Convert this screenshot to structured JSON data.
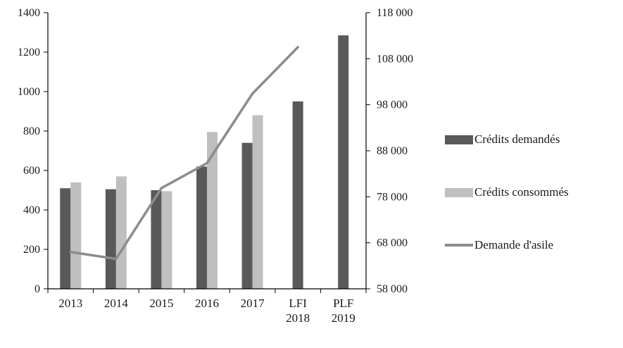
{
  "chart_data": {
    "type": "combo-bar-line",
    "title": "",
    "categories": [
      "2013",
      "2014",
      "2015",
      "2016",
      "2017",
      "LFI 2018",
      "PLF 2019"
    ],
    "category_labels": [
      [
        "2013"
      ],
      [
        "2014"
      ],
      [
        "2015"
      ],
      [
        "2016"
      ],
      [
        "2017"
      ],
      [
        "LFI",
        "2018"
      ],
      [
        "PLF",
        "2019"
      ]
    ],
    "series": [
      {
        "name": "Crédits demandés",
        "type": "bar",
        "axis": "left",
        "color": "#595959",
        "values": [
          510,
          505,
          500,
          620,
          740,
          950,
          1285
        ]
      },
      {
        "name": "Crédits consommés",
        "type": "bar",
        "axis": "left",
        "color": "#bfbfbf",
        "values": [
          540,
          570,
          495,
          795,
          880,
          null,
          null
        ]
      },
      {
        "name": "Demande d'asile",
        "type": "line",
        "axis": "right",
        "color": "#8c8c8c",
        "values": [
          66000,
          64500,
          79900,
          85300,
          100400,
          110500,
          null
        ]
      }
    ],
    "left_axis": {
      "min": 0,
      "max": 1400,
      "step": 200,
      "tick_labels": [
        "0",
        "200",
        "400",
        "600",
        "800",
        "1000",
        "1200",
        "1400"
      ]
    },
    "right_axis": {
      "min": 58000,
      "max": 118000,
      "step": 10000,
      "tick_labels": [
        "58 000",
        "68 000",
        "78 000",
        "88 000",
        "98 000",
        "108 000",
        "118 000"
      ]
    },
    "legend_position": "right",
    "grid": false,
    "axis_color": "#000000",
    "text_color": "#1a1a1a"
  }
}
